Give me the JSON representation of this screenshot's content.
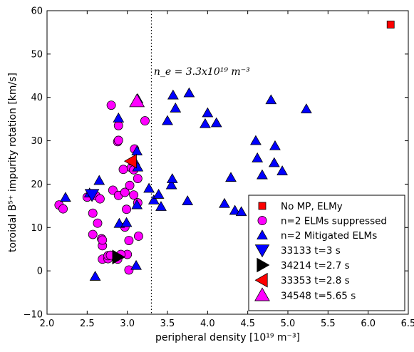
{
  "chart_data": {
    "type": "scatter",
    "xlabel": "peripheral density [10¹⁹ m⁻³]",
    "ylabel": "toroidal B⁵⁺ impurity rotation [km/s]",
    "xlim": [
      2.0,
      6.5
    ],
    "ylim": [
      -10,
      60
    ],
    "xticks": [
      "2.0",
      "2.5",
      "3.0",
      "3.5",
      "4.0",
      "4.5",
      "5.0",
      "5.5",
      "6.0",
      "6.5"
    ],
    "yticks": [
      "−10",
      "0",
      "10",
      "20",
      "30",
      "40",
      "50",
      "60"
    ],
    "vline": {
      "x": 3.3
    },
    "annotation": {
      "text": "n_e = 3.3x10¹⁹ m⁻³",
      "x": 3.33,
      "y": 46
    },
    "series": [
      {
        "name": "No MP, ELMy",
        "marker": "square",
        "color": "#ff0000",
        "points": [
          [
            6.28,
            56.8
          ]
        ]
      },
      {
        "name": "n=2 ELMs suppressed",
        "marker": "circle",
        "color": "#ff00ff",
        "points": [
          [
            2.15,
            15.2
          ],
          [
            2.2,
            14.3
          ],
          [
            2.5,
            17.0
          ],
          [
            2.57,
            13.3
          ],
          [
            2.57,
            8.4
          ],
          [
            2.61,
            17.3
          ],
          [
            2.63,
            11.0
          ],
          [
            2.66,
            16.6
          ],
          [
            2.68,
            7.4
          ],
          [
            2.69,
            5.8
          ],
          [
            2.69,
            2.7
          ],
          [
            2.69,
            7.1
          ],
          [
            2.76,
            2.8
          ],
          [
            2.76,
            3.5
          ],
          [
            2.79,
            3.6
          ],
          [
            2.8,
            38.2
          ],
          [
            2.82,
            18.6
          ],
          [
            2.88,
            2.7
          ],
          [
            2.88,
            29.8
          ],
          [
            2.89,
            33.5
          ],
          [
            2.89,
            30.1
          ],
          [
            2.89,
            17.4
          ],
          [
            2.95,
            23.4
          ],
          [
            2.97,
            10.1
          ],
          [
            2.97,
            18.1
          ],
          [
            2.99,
            14.2
          ],
          [
            3.0,
            3.8
          ],
          [
            3.02,
            0.2
          ],
          [
            3.03,
            19.7
          ],
          [
            3.05,
            23.8
          ],
          [
            3.08,
            23.3
          ],
          [
            3.08,
            17.5
          ],
          [
            3.09,
            28.1
          ],
          [
            3.13,
            21.3
          ],
          [
            3.14,
            8.0
          ],
          [
            3.13,
            15.7
          ],
          [
            3.22,
            34.6
          ],
          [
            3.02,
            7.0
          ],
          [
            2.92,
            3.8
          ]
        ]
      },
      {
        "name": "n=2 Mitigated ELMs",
        "marker": "triangle-up",
        "color": "#0000ff",
        "points": [
          [
            2.23,
            16.9
          ],
          [
            2.53,
            17.9
          ],
          [
            2.6,
            -1.3
          ],
          [
            2.65,
            20.8
          ],
          [
            2.89,
            35.2
          ],
          [
            2.9,
            10.9
          ],
          [
            2.99,
            11.1
          ],
          [
            3.09,
            25.3
          ],
          [
            3.11,
            1.2
          ],
          [
            3.12,
            27.6
          ],
          [
            3.13,
            23.9
          ],
          [
            3.12,
            15.2
          ],
          [
            3.13,
            39.6
          ],
          [
            3.27,
            19.0
          ],
          [
            3.33,
            16.3
          ],
          [
            3.39,
            17.6
          ],
          [
            3.42,
            14.8
          ],
          [
            3.5,
            34.6
          ],
          [
            3.55,
            19.8
          ],
          [
            3.56,
            21.2
          ],
          [
            3.57,
            40.5
          ],
          [
            3.6,
            37.5
          ],
          [
            3.75,
            16.1
          ],
          [
            3.77,
            41.0
          ],
          [
            3.97,
            33.9
          ],
          [
            4.0,
            36.4
          ],
          [
            4.11,
            34.1
          ],
          [
            4.21,
            15.5
          ],
          [
            4.29,
            21.5
          ],
          [
            4.34,
            13.9
          ],
          [
            4.42,
            13.6
          ],
          [
            4.6,
            30.0
          ],
          [
            4.62,
            26.0
          ],
          [
            4.68,
            22.1
          ],
          [
            4.79,
            39.4
          ],
          [
            4.83,
            24.9
          ],
          [
            4.84,
            28.8
          ],
          [
            4.93,
            23.0
          ],
          [
            5.23,
            37.3
          ]
        ]
      },
      {
        "name": "33133 t=3 s",
        "marker": "triangle-down",
        "color": "#0000ff",
        "points": [
          [
            2.56,
            17.6
          ]
        ]
      },
      {
        "name": "34214 t=2.7 s",
        "marker": "triangle-right",
        "color": "#000000",
        "points": [
          [
            2.88,
            3.2
          ]
        ]
      },
      {
        "name": "33353 t=2.8 s",
        "marker": "triangle-left",
        "color": "#ff0000",
        "points": [
          [
            3.05,
            25.3
          ]
        ]
      },
      {
        "name": "34548 t=5.65 s",
        "marker": "triangle-up",
        "color": "#ff00ff",
        "points": [
          [
            3.12,
            39.1
          ]
        ]
      }
    ],
    "legend": {
      "placement": "lower-right"
    },
    "grid": false
  }
}
